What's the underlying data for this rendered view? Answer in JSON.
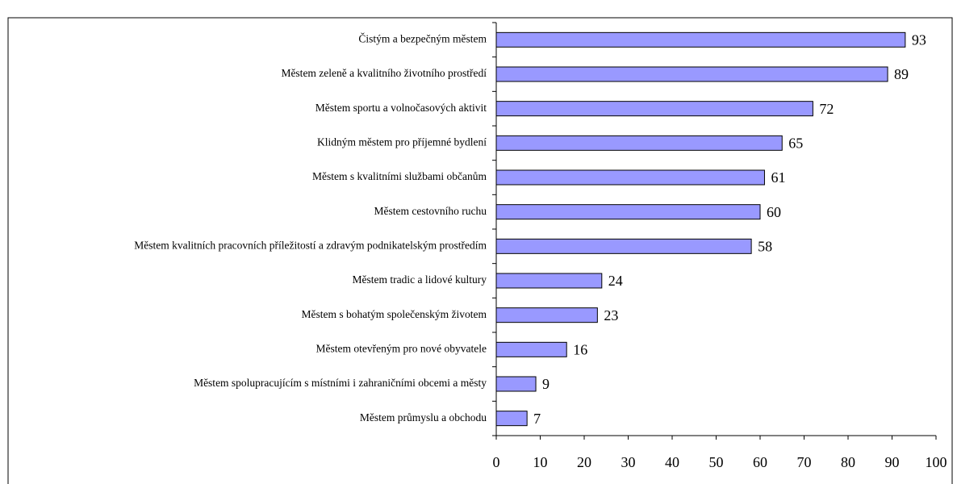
{
  "chart_data": {
    "type": "bar",
    "orientation": "horizontal",
    "categories": [
      "Čistým a bezpečným městem",
      "Městem zeleně a kvalitního životního prostředí",
      "Městem sportu a volnočasových aktivit",
      "Klidným městem pro příjemné bydlení",
      "Městem s kvalitními službami občanům",
      "Městem cestovního ruchu",
      "Městem kvalitních pracovních příležitostí a zdravým podnikatelským prostředím",
      "Městem tradic a lidové kultury",
      "Městem s bohatým společenským životem",
      "Městem otevřeným pro nové obyvatele",
      "Městem spolupracujícím s místními i zahraničními obcemi a městy",
      "Městem průmyslu a obchodu"
    ],
    "values": [
      93,
      89,
      72,
      65,
      61,
      60,
      58,
      24,
      23,
      16,
      9,
      7
    ],
    "color": "#9999ff",
    "xlim": [
      0,
      100
    ],
    "xticks": [
      0,
      10,
      20,
      30,
      40,
      50,
      60,
      70,
      80,
      90,
      100
    ]
  }
}
